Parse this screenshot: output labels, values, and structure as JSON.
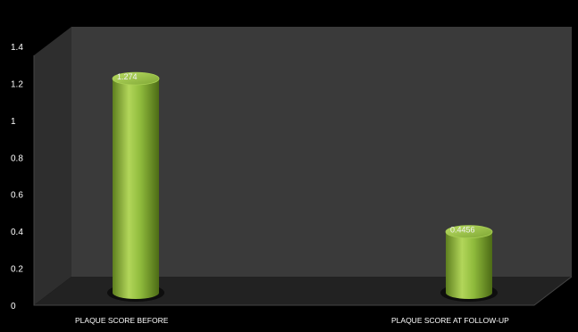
{
  "chart_data": {
    "type": "bar",
    "style": "3d-cylinder",
    "title": "",
    "xlabel": "",
    "ylabel": "",
    "categories": [
      "PLAQUE SCORE BEFORE",
      "PLAQUE SCORE AT FOLLOW-UP"
    ],
    "values": [
      1.274,
      0.4456
    ],
    "data_labels": [
      "1.274",
      "0.4456"
    ],
    "ylim": [
      0,
      1.4
    ],
    "yticks": [
      "0",
      "0.2",
      "0.4",
      "0.6",
      "0.8",
      "1",
      "1.2",
      "1.4"
    ],
    "grid": false,
    "legend": "none",
    "colors": {
      "background": "#000000",
      "back_wall": "#3a3a3a",
      "floor": "#222222",
      "bar": "#8db83c",
      "bar_highlight": "#c3e06e",
      "bar_shadow": "#4f6d17",
      "text": "#ffffff"
    }
  }
}
